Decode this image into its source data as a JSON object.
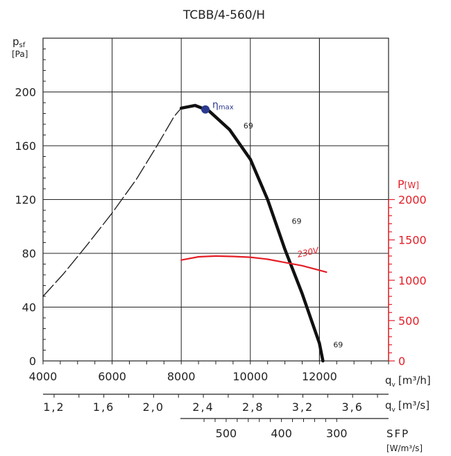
{
  "chart_data": {
    "type": "line",
    "title": "TCBB/4-560/H",
    "left_axis": {
      "label_main": "p",
      "label_sub": "sf",
      "unit": "[Pa]",
      "ticks": [
        0,
        40,
        80,
        120,
        160,
        200
      ],
      "ylim": [
        0,
        240
      ]
    },
    "right_axis": {
      "label_main": "P",
      "unit": "[W]",
      "color": "#e41e26",
      "ticks": [
        0,
        500,
        1000,
        1500,
        2000
      ]
    },
    "x_axis": {
      "label": "q",
      "label_sub": "v",
      "unit": "[m³/h]",
      "ticks": [
        4000,
        6000,
        8000,
        10000,
        12000
      ],
      "xlim": [
        4000,
        14000
      ]
    },
    "x_axis_2": {
      "label": "q",
      "label_sub": "v",
      "unit": "[m³/s]",
      "ticks": [
        "1,2",
        "1,6",
        "2,0",
        "2,4",
        "2,8",
        "3,2",
        "3,6"
      ],
      "tick_flow_m3h": [
        4320,
        5760,
        7200,
        8640,
        10080,
        11520,
        12960
      ]
    },
    "x_axis_3": {
      "label": "SFP",
      "unit": "[W/m³/s]",
      "ticks": [
        "500",
        "400",
        "300"
      ],
      "tick_flow_m3h": [
        9300,
        10900,
        12500
      ]
    },
    "grid": true,
    "series": [
      {
        "role": "pressure_dashed",
        "color": "#222222",
        "x": [
          4000,
          4600,
          5300,
          6000,
          6700,
          7300,
          7800,
          8000
        ],
        "y": [
          48,
          65,
          87,
          110,
          135,
          160,
          182,
          188
        ]
      },
      {
        "role": "pressure",
        "color": "#111111",
        "x": [
          8000,
          8400,
          8800,
          9400,
          10000,
          10500,
          11000,
          11500,
          12000,
          12100
        ],
        "y": [
          188,
          190,
          186,
          172,
          150,
          120,
          83,
          50,
          13,
          0
        ]
      },
      {
        "name": "230V",
        "role": "power",
        "axis": "right",
        "color": "#e41e26",
        "x": [
          8000,
          8500,
          9000,
          9500,
          10000,
          10500,
          11000,
          11500,
          12200
        ],
        "y": [
          1250,
          1290,
          1300,
          1295,
          1285,
          1260,
          1220,
          1180,
          1100
        ]
      }
    ],
    "annotations": [
      {
        "text": "69",
        "x": 9800,
        "y": 173
      },
      {
        "text": "69",
        "x": 11200,
        "y": 102
      },
      {
        "text": "69",
        "x": 12400,
        "y": 10
      }
    ],
    "eta_max": {
      "label": "η",
      "label_sub": "max",
      "x": 8700,
      "y": 187,
      "color": "#2b3a8f"
    }
  }
}
